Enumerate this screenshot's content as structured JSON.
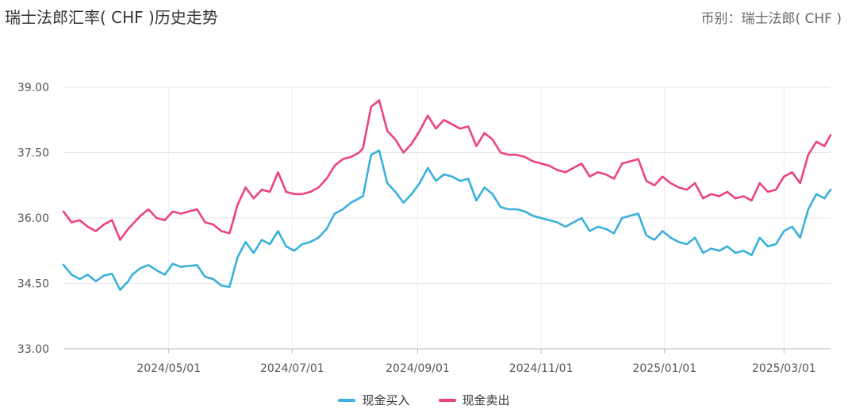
{
  "header": {
    "title": "瑞士法郎汇率( CHF )历史走势",
    "currency_label": "币别：瑞士法郎( CHF )"
  },
  "chart_data": {
    "type": "line",
    "title": "瑞士法郎汇率( CHF )历史走势",
    "xlabel": "",
    "ylabel": "",
    "ylim": [
      33.0,
      39.0
    ],
    "yticks": [
      "33.00",
      "34.50",
      "36.00",
      "37.50",
      "39.00"
    ],
    "xlim": [
      "2024-03-10",
      "2025-03-24"
    ],
    "xticks": [
      "2024/05/01",
      "2024/07/01",
      "2024/09/01",
      "2024/11/01",
      "2025/01/01",
      "2025/03/01"
    ],
    "grid": true,
    "legend_position": "bottom",
    "series": [
      {
        "name": "现金买入",
        "color": "#3ab0db",
        "x": [
          "2024-03-10",
          "2024-03-14",
          "2024-03-18",
          "2024-03-22",
          "2024-03-26",
          "2024-03-30",
          "2024-04-03",
          "2024-04-07",
          "2024-04-11",
          "2024-04-13",
          "2024-04-17",
          "2024-04-21",
          "2024-04-25",
          "2024-04-29",
          "2024-05-03",
          "2024-05-07",
          "2024-05-11",
          "2024-05-15",
          "2024-05-19",
          "2024-05-23",
          "2024-05-27",
          "2024-05-31",
          "2024-06-01",
          "2024-06-04",
          "2024-06-08",
          "2024-06-12",
          "2024-06-16",
          "2024-06-20",
          "2024-06-24",
          "2024-06-28",
          "2024-07-02",
          "2024-07-06",
          "2024-07-10",
          "2024-07-14",
          "2024-07-18",
          "2024-07-22",
          "2024-07-26",
          "2024-07-30",
          "2024-08-03",
          "2024-08-05",
          "2024-08-09",
          "2024-08-13",
          "2024-08-17",
          "2024-08-21",
          "2024-08-25",
          "2024-08-29",
          "2024-09-02",
          "2024-09-06",
          "2024-09-10",
          "2024-09-14",
          "2024-09-18",
          "2024-09-22",
          "2024-09-26",
          "2024-09-30",
          "2024-10-04",
          "2024-10-08",
          "2024-10-12",
          "2024-10-16",
          "2024-10-20",
          "2024-10-24",
          "2024-10-28",
          "2024-11-01",
          "2024-11-05",
          "2024-11-09",
          "2024-11-13",
          "2024-11-17",
          "2024-11-21",
          "2024-11-25",
          "2024-11-29",
          "2024-12-03",
          "2024-12-07",
          "2024-12-11",
          "2024-12-15",
          "2024-12-19",
          "2024-12-23",
          "2024-12-27",
          "2024-12-31",
          "2025-01-04",
          "2025-01-08",
          "2025-01-12",
          "2025-01-16",
          "2025-01-20",
          "2025-01-24",
          "2025-01-28",
          "2025-02-01",
          "2025-02-05",
          "2025-02-09",
          "2025-02-13",
          "2025-02-17",
          "2025-02-21",
          "2025-02-25",
          "2025-03-01",
          "2025-03-05",
          "2025-03-09",
          "2025-03-13",
          "2025-03-17",
          "2025-03-21",
          "2025-03-24"
        ],
        "values": [
          34.93,
          34.7,
          34.6,
          34.7,
          34.55,
          34.68,
          34.72,
          34.35,
          34.55,
          34.7,
          34.85,
          34.92,
          34.8,
          34.7,
          34.95,
          34.88,
          34.9,
          34.92,
          34.65,
          34.6,
          34.45,
          34.42,
          34.58,
          35.1,
          35.45,
          35.2,
          35.5,
          35.4,
          35.7,
          35.35,
          35.25,
          35.4,
          35.45,
          35.55,
          35.75,
          36.1,
          36.2,
          36.35,
          36.45,
          36.5,
          37.45,
          37.55,
          36.8,
          36.6,
          36.35,
          36.55,
          36.8,
          37.15,
          36.85,
          37.0,
          36.95,
          36.85,
          36.9,
          36.4,
          36.7,
          36.55,
          36.25,
          36.2,
          36.2,
          36.15,
          36.05,
          36.0,
          35.95,
          35.9,
          35.8,
          35.9,
          36.0,
          35.7,
          35.8,
          35.75,
          35.65,
          36.0,
          36.05,
          36.1,
          35.6,
          35.5,
          35.7,
          35.55,
          35.45,
          35.4,
          35.55,
          35.2,
          35.3,
          35.25,
          35.35,
          35.2,
          35.25,
          35.15,
          35.55,
          35.35,
          35.4,
          35.7,
          35.8,
          35.55,
          36.2,
          36.55,
          36.45,
          36.65
        ]
      },
      {
        "name": "现金卖出",
        "color": "#ec4281",
        "x": [
          "2024-03-10",
          "2024-03-14",
          "2024-03-18",
          "2024-03-22",
          "2024-03-26",
          "2024-03-30",
          "2024-04-03",
          "2024-04-07",
          "2024-04-11",
          "2024-04-13",
          "2024-04-17",
          "2024-04-21",
          "2024-04-25",
          "2024-04-29",
          "2024-05-03",
          "2024-05-07",
          "2024-05-11",
          "2024-05-15",
          "2024-05-19",
          "2024-05-23",
          "2024-05-27",
          "2024-05-31",
          "2024-06-01",
          "2024-06-04",
          "2024-06-08",
          "2024-06-12",
          "2024-06-16",
          "2024-06-20",
          "2024-06-24",
          "2024-06-28",
          "2024-07-02",
          "2024-07-06",
          "2024-07-10",
          "2024-07-14",
          "2024-07-18",
          "2024-07-22",
          "2024-07-26",
          "2024-07-30",
          "2024-08-03",
          "2024-08-05",
          "2024-08-09",
          "2024-08-13",
          "2024-08-17",
          "2024-08-21",
          "2024-08-25",
          "2024-08-29",
          "2024-09-02",
          "2024-09-06",
          "2024-09-10",
          "2024-09-14",
          "2024-09-18",
          "2024-09-22",
          "2024-09-26",
          "2024-09-30",
          "2024-10-04",
          "2024-10-08",
          "2024-10-12",
          "2024-10-16",
          "2024-10-20",
          "2024-10-24",
          "2024-10-28",
          "2024-11-01",
          "2024-11-05",
          "2024-11-09",
          "2024-11-13",
          "2024-11-17",
          "2024-11-21",
          "2024-11-25",
          "2024-11-29",
          "2024-12-03",
          "2024-12-07",
          "2024-12-11",
          "2024-12-15",
          "2024-12-19",
          "2024-12-23",
          "2024-12-27",
          "2024-12-31",
          "2025-01-04",
          "2025-01-08",
          "2025-01-12",
          "2025-01-16",
          "2025-01-20",
          "2025-01-24",
          "2025-01-28",
          "2025-02-01",
          "2025-02-05",
          "2025-02-09",
          "2025-02-13",
          "2025-02-17",
          "2025-02-21",
          "2025-02-25",
          "2025-03-01",
          "2025-03-05",
          "2025-03-09",
          "2025-03-13",
          "2025-03-17",
          "2025-03-21",
          "2025-03-24"
        ],
        "values": [
          36.15,
          35.9,
          35.95,
          35.8,
          35.7,
          35.85,
          35.95,
          35.5,
          35.75,
          35.85,
          36.05,
          36.2,
          36.0,
          35.95,
          36.15,
          36.1,
          36.15,
          36.2,
          35.9,
          35.85,
          35.7,
          35.65,
          35.8,
          36.3,
          36.7,
          36.45,
          36.65,
          36.6,
          37.05,
          36.6,
          36.55,
          36.55,
          36.6,
          36.7,
          36.9,
          37.2,
          37.35,
          37.4,
          37.5,
          37.6,
          38.55,
          38.7,
          38.0,
          37.8,
          37.5,
          37.7,
          38.0,
          38.35,
          38.05,
          38.25,
          38.15,
          38.05,
          38.1,
          37.65,
          37.95,
          37.8,
          37.5,
          37.45,
          37.45,
          37.4,
          37.3,
          37.25,
          37.2,
          37.1,
          37.05,
          37.15,
          37.25,
          36.95,
          37.05,
          37.0,
          36.9,
          37.25,
          37.3,
          37.35,
          36.85,
          36.75,
          36.95,
          36.8,
          36.7,
          36.65,
          36.8,
          36.45,
          36.55,
          36.5,
          36.6,
          36.45,
          36.5,
          36.4,
          36.8,
          36.6,
          36.65,
          36.95,
          37.05,
          36.8,
          37.45,
          37.75,
          37.65,
          37.9
        ]
      }
    ]
  }
}
